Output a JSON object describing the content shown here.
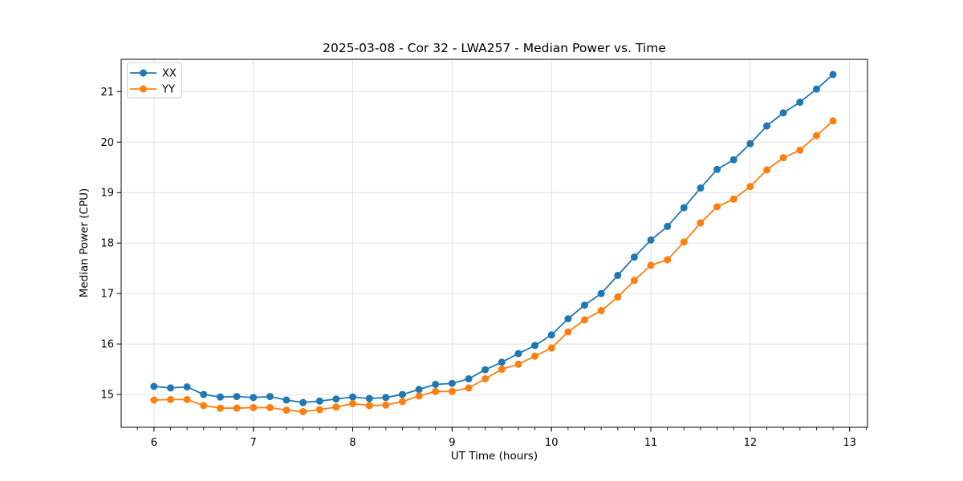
{
  "chart_data": {
    "type": "line",
    "title": "2025-03-08 - Cor 32 - LWA257 - Median Power vs. Time",
    "xlabel": "UT Time (hours)",
    "ylabel": "Median Power (CPU)",
    "xlim": [
      5.67,
      13.18
    ],
    "ylim": [
      14.35,
      21.64
    ],
    "x_ticks": [
      6,
      7,
      8,
      9,
      10,
      11,
      12,
      13
    ],
    "y_ticks": [
      15,
      16,
      17,
      18,
      19,
      20,
      21
    ],
    "x_minor_tick_step": 0.166667,
    "grid": true,
    "grid_color": "#e0e0e0",
    "legend_position": "upper-left",
    "x": [
      6.0,
      6.167,
      6.333,
      6.5,
      6.667,
      6.833,
      7.0,
      7.167,
      7.333,
      7.5,
      7.667,
      7.833,
      8.0,
      8.167,
      8.333,
      8.5,
      8.667,
      8.833,
      9.0,
      9.167,
      9.333,
      9.5,
      9.667,
      9.833,
      10.0,
      10.167,
      10.333,
      10.5,
      10.667,
      10.833,
      11.0,
      11.167,
      11.333,
      11.5,
      11.667,
      11.833,
      12.0,
      12.167,
      12.333,
      12.5,
      12.667,
      12.833
    ],
    "series": [
      {
        "name": "XX",
        "color": "#1f77b4",
        "values": [
          15.16,
          15.13,
          15.15,
          15.0,
          14.95,
          14.96,
          14.94,
          14.96,
          14.89,
          14.84,
          14.87,
          14.91,
          14.95,
          14.92,
          14.94,
          15.0,
          15.1,
          15.2,
          15.22,
          15.31,
          15.49,
          15.64,
          15.81,
          15.97,
          16.18,
          16.5,
          16.77,
          17.0,
          17.36,
          17.72,
          18.06,
          18.33,
          18.7,
          19.09,
          19.46,
          19.65,
          19.97,
          20.32,
          20.58,
          20.79,
          21.05,
          21.34
        ]
      },
      {
        "name": "YY",
        "color": "#ff7f0e",
        "values": [
          14.89,
          14.9,
          14.9,
          14.78,
          14.73,
          14.73,
          14.74,
          14.74,
          14.69,
          14.66,
          14.7,
          14.75,
          14.82,
          14.78,
          14.79,
          14.86,
          14.97,
          15.06,
          15.06,
          15.13,
          15.31,
          15.5,
          15.6,
          15.76,
          15.92,
          16.24,
          16.48,
          16.66,
          16.93,
          17.26,
          17.56,
          17.67,
          18.02,
          18.4,
          18.72,
          18.87,
          19.12,
          19.45,
          19.69,
          19.84,
          20.13,
          20.42
        ]
      }
    ]
  }
}
